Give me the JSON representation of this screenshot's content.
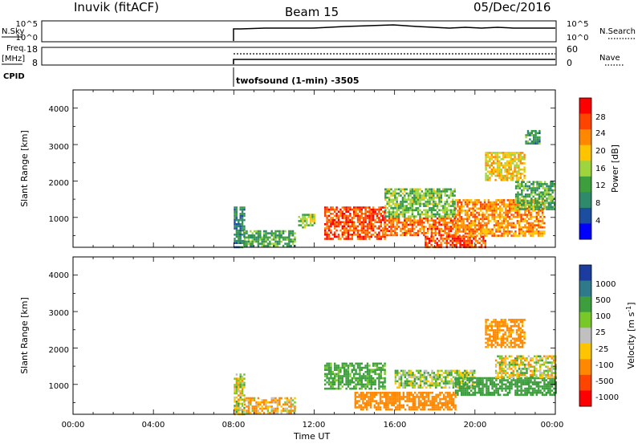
{
  "header": {
    "station": "Inuvik (fitACF)",
    "beam": "Beam 15",
    "date": "05/Dec/2016"
  },
  "top_panels": {
    "nsky_label": "N.Sky",
    "nsky_ticks": [
      "10^5",
      "10^0"
    ],
    "nsearch_label": "N.Search",
    "nsearch_ticks": [
      "10^5",
      "10^0"
    ],
    "freq_label": "Freq.",
    "freq_unit": "[MHz]",
    "freq_ticks": [
      "18",
      "8"
    ],
    "nave_label": "Nave",
    "nave_ticks": [
      "60",
      "0"
    ],
    "cpid_label": "CPID",
    "cpid_text": "twofsound (1-min) -3505"
  },
  "axes": {
    "ylabel": "Slant Range [km]",
    "xlabel": "Time UT",
    "y_ticks": [
      "4000",
      "3000",
      "2000",
      "1000"
    ],
    "x_ticks": [
      "00:00",
      "04:00",
      "08:00",
      "12:00",
      "16:00",
      "20:00",
      "00:00"
    ]
  },
  "colorbars": {
    "power": {
      "label": "Power [dB]",
      "ticks": [
        "28",
        "24",
        "20",
        "16",
        "12",
        "8",
        "4"
      ],
      "colors": [
        "#ff0000",
        "#ff4400",
        "#ff8800",
        "#ffc400",
        "#9ed43c",
        "#3c9e3c",
        "#2e8a6a",
        "#1c4ea0",
        "#0000ff"
      ]
    },
    "velocity": {
      "label": "Velocity [m s",
      "label_sup": "-1",
      "label_end": "]",
      "ticks": [
        "1000",
        "500",
        "100",
        "25",
        "-25",
        "-100",
        "-500",
        "-1000"
      ],
      "colors": [
        "#1c3ca0",
        "#2e7a8a",
        "#3c9e3c",
        "#78c828",
        "#c0c0c0",
        "#ffc400",
        "#ff8800",
        "#ff4400",
        "#ff0000"
      ]
    }
  },
  "chart_data": [
    {
      "type": "heatmap",
      "title": "Power",
      "x_range_hours": [
        0,
        24
      ],
      "ylim": [
        180,
        4500
      ],
      "value_label": "Power [dB]",
      "regions": [
        {
          "t0": 8.0,
          "t1": 8.5,
          "r0": 200,
          "r1": 1300,
          "value": 8
        },
        {
          "t0": 8.5,
          "t1": 11.0,
          "r0": 200,
          "r1": 650,
          "value": 12
        },
        {
          "t0": 11.2,
          "t1": 12.0,
          "r0": 700,
          "r1": 1100,
          "value": 16
        },
        {
          "t0": 12.5,
          "t1": 15.5,
          "r0": 400,
          "r1": 1300,
          "value": 28
        },
        {
          "t0": 15.5,
          "t1": 19.0,
          "r0": 500,
          "r1": 1000,
          "value": 26
        },
        {
          "t0": 15.5,
          "t1": 19.0,
          "r0": 1000,
          "r1": 1800,
          "value": 14
        },
        {
          "t0": 17.5,
          "t1": 20.5,
          "r0": 200,
          "r1": 500,
          "value": 28
        },
        {
          "t0": 19.0,
          "t1": 23.5,
          "r0": 500,
          "r1": 1500,
          "value": 24
        },
        {
          "t0": 20.5,
          "t1": 22.5,
          "r0": 2000,
          "r1": 2800,
          "value": 20
        },
        {
          "t0": 22.0,
          "t1": 24.0,
          "r0": 1200,
          "r1": 2000,
          "value": 12
        },
        {
          "t0": 22.5,
          "t1": 23.2,
          "r0": 3000,
          "r1": 3400,
          "value": 10
        }
      ]
    },
    {
      "type": "heatmap",
      "title": "Velocity",
      "x_range_hours": [
        0,
        24
      ],
      "ylim": [
        180,
        4500
      ],
      "value_label": "Velocity [m s-1]",
      "regions": [
        {
          "t0": 8.0,
          "t1": 8.5,
          "r0": 200,
          "r1": 1300,
          "value": 0
        },
        {
          "t0": 8.5,
          "t1": 11.0,
          "r0": 200,
          "r1": 650,
          "value": -100
        },
        {
          "t0": 12.5,
          "t1": 15.5,
          "r0": 900,
          "r1": 1600,
          "value": 200
        },
        {
          "t0": 14.0,
          "t1": 19.0,
          "r0": 300,
          "r1": 800,
          "value": -300
        },
        {
          "t0": 16.0,
          "t1": 20.0,
          "r0": 900,
          "r1": 1400,
          "value": 50
        },
        {
          "t0": 19.0,
          "t1": 24.0,
          "r0": 700,
          "r1": 1200,
          "value": 300
        },
        {
          "t0": 20.5,
          "t1": 22.5,
          "r0": 2000,
          "r1": 2800,
          "value": -200
        },
        {
          "t0": 21.0,
          "t1": 24.0,
          "r0": 1200,
          "r1": 1800,
          "value": 0
        }
      ]
    }
  ]
}
